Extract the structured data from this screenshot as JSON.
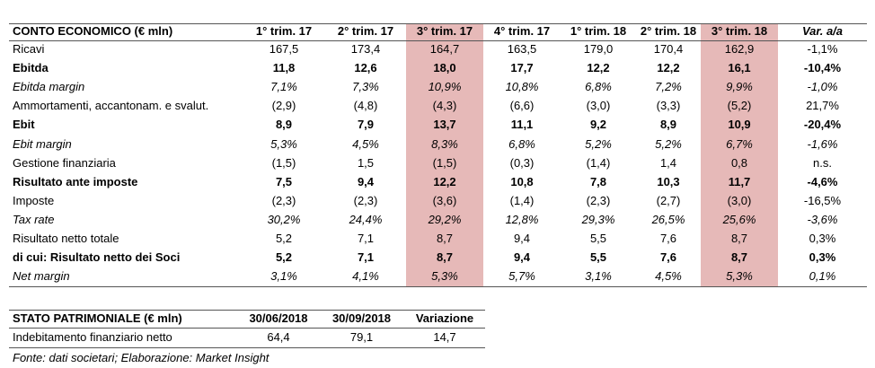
{
  "income_table": {
    "headers": [
      "CONTO ECONOMICO (€ mln)",
      "1° trim. 17",
      "2° trim. 17",
      "3° trim. 17",
      "4° trim. 17",
      "1° trim. 18",
      "2° trim. 18",
      "3° trim. 18",
      "Var. a/a"
    ],
    "highlight_columns": [
      3,
      7
    ],
    "rows": [
      {
        "label": "Ricavi",
        "style": "normal",
        "cells": [
          "167,5",
          "173,4",
          "164,7",
          "163,5",
          "179,0",
          "170,4",
          "162,9",
          "-1,1%"
        ]
      },
      {
        "label": "Ebitda",
        "style": "bold",
        "cells": [
          "11,8",
          "12,6",
          "18,0",
          "17,7",
          "12,2",
          "12,2",
          "16,1",
          "-10,4%"
        ]
      },
      {
        "label": "Ebitda margin",
        "style": "italic",
        "cells": [
          "7,1%",
          "7,3%",
          "10,9%",
          "10,8%",
          "6,8%",
          "7,2%",
          "9,9%",
          "-1,0%"
        ]
      },
      {
        "label": "Ammortamenti, accantonam. e svalut.",
        "style": "normal",
        "cells": [
          "(2,9)",
          "(4,8)",
          "(4,3)",
          "(6,6)",
          "(3,0)",
          "(3,3)",
          "(5,2)",
          "21,7%"
        ]
      },
      {
        "label": "Ebit",
        "style": "bold",
        "cells": [
          "8,9",
          "7,9",
          "13,7",
          "11,1",
          "9,2",
          "8,9",
          "10,9",
          "-20,4%"
        ]
      },
      {
        "label": "Ebit margin",
        "style": "italic",
        "cells": [
          "5,3%",
          "4,5%",
          "8,3%",
          "6,8%",
          "5,2%",
          "5,2%",
          "6,7%",
          "-1,6%"
        ]
      },
      {
        "label": "Gestione finanziaria",
        "style": "normal",
        "cells": [
          "(1,5)",
          "1,5",
          "(1,5)",
          "(0,3)",
          "(1,4)",
          "1,4",
          "0,8",
          "n.s."
        ]
      },
      {
        "label": "Risultato ante imposte",
        "style": "bold",
        "cells": [
          "7,5",
          "9,4",
          "12,2",
          "10,8",
          "7,8",
          "10,3",
          "11,7",
          "-4,6%"
        ]
      },
      {
        "label": "Imposte",
        "style": "normal",
        "cells": [
          "(2,3)",
          "(2,3)",
          "(3,6)",
          "(1,4)",
          "(2,3)",
          "(2,7)",
          "(3,0)",
          "-16,5%"
        ]
      },
      {
        "label": "Tax rate",
        "style": "italic",
        "cells": [
          "30,2%",
          "24,4%",
          "29,2%",
          "12,8%",
          "29,3%",
          "26,5%",
          "25,6%",
          "-3,6%"
        ]
      },
      {
        "label": "Risultato netto totale",
        "style": "normal",
        "cells": [
          "5,2",
          "7,1",
          "8,7",
          "9,4",
          "5,5",
          "7,6",
          "8,7",
          "0,3%"
        ]
      },
      {
        "label": "di cui: Risultato netto dei Soci",
        "style": "bold",
        "cells": [
          "5,2",
          "7,1",
          "8,7",
          "9,4",
          "5,5",
          "7,6",
          "8,7",
          "0,3%"
        ]
      },
      {
        "label": "Net margin",
        "style": "italic",
        "cells": [
          "3,1%",
          "4,1%",
          "5,3%",
          "5,7%",
          "3,1%",
          "4,5%",
          "5,3%",
          "0,1%"
        ]
      }
    ]
  },
  "balance_table": {
    "headers": [
      "STATO PATRIMONIALE (€ mln)",
      "30/06/2018",
      "30/09/2018",
      "Variazione"
    ],
    "rows": [
      {
        "label": "Indebitamento finanziario netto",
        "cells": [
          "64,4",
          "79,1",
          "14,7"
        ]
      }
    ]
  },
  "source": "Fonte: dati societari; Elaborazione: Market Insight"
}
